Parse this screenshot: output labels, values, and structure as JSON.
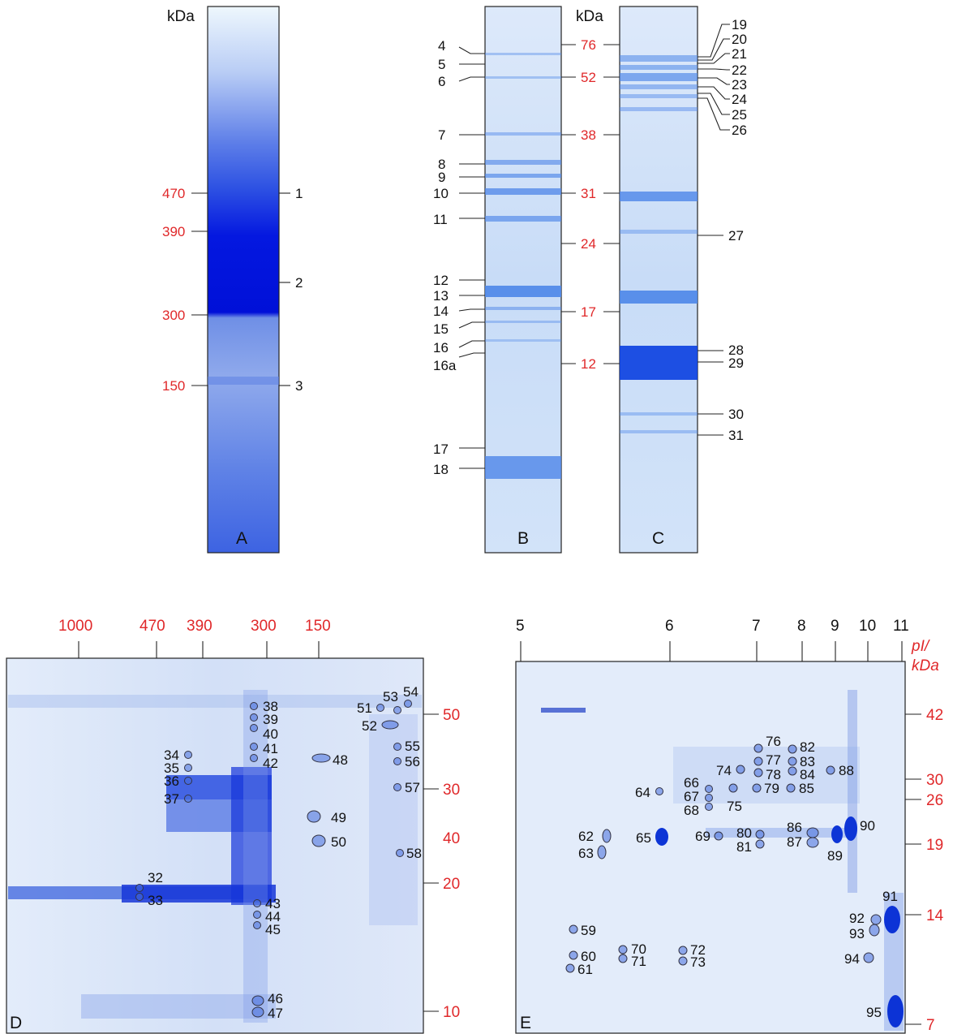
{
  "panels": {
    "A": {
      "letter": "A",
      "kda_header": "kDa",
      "markers": [
        "470",
        "390",
        "300",
        "150"
      ],
      "bands": [
        "1",
        "2",
        "3"
      ]
    },
    "B": {
      "letter": "B",
      "bands_left": [
        "4",
        "5",
        "6",
        "7",
        "8",
        "9",
        "10",
        "11",
        "12",
        "13",
        "14",
        "15",
        "16",
        "16a",
        "17",
        "18"
      ],
      "kda_header": "kDa",
      "markers": [
        "76",
        "52",
        "38",
        "31",
        "24",
        "17",
        "12"
      ]
    },
    "C": {
      "letter": "C",
      "bands_right": [
        "19",
        "20",
        "21",
        "22",
        "23",
        "24",
        "25",
        "26",
        "27",
        "28",
        "29",
        "30",
        "31"
      ]
    },
    "D": {
      "letter": "D",
      "top_axis": [
        "1000",
        "470",
        "390",
        "300",
        "150"
      ],
      "right_axis": [
        "50",
        "40",
        "30",
        "20",
        "10"
      ],
      "spots": [
        "32",
        "33",
        "34",
        "35",
        "36",
        "37",
        "38",
        "39",
        "40",
        "41",
        "42",
        "43",
        "44",
        "45",
        "46",
        "47",
        "48",
        "49",
        "50",
        "51",
        "52",
        "53",
        "54",
        "55",
        "56",
        "57",
        "58"
      ]
    },
    "E": {
      "letter": "E",
      "top_axis": [
        "5",
        "6",
        "7",
        "8",
        "9",
        "10",
        "11"
      ],
      "axis_title_1": "pI/",
      "axis_title_2": "kDa",
      "right_axis": [
        "42",
        "30",
        "26",
        "19",
        "14",
        "7"
      ],
      "spots": [
        "59",
        "60",
        "61",
        "62",
        "63",
        "64",
        "65",
        "66",
        "67",
        "68",
        "69",
        "70",
        "71",
        "72",
        "73",
        "74",
        "75",
        "76",
        "77",
        "78",
        "79",
        "80",
        "81",
        "82",
        "83",
        "84",
        "85",
        "86",
        "87",
        "88",
        "89",
        "90",
        "91",
        "92",
        "93",
        "94",
        "95"
      ]
    }
  },
  "colors": {
    "marker_red": "#e0282a",
    "gel_blue": "#1e44d8",
    "gel_light": "#cfe3fb"
  }
}
